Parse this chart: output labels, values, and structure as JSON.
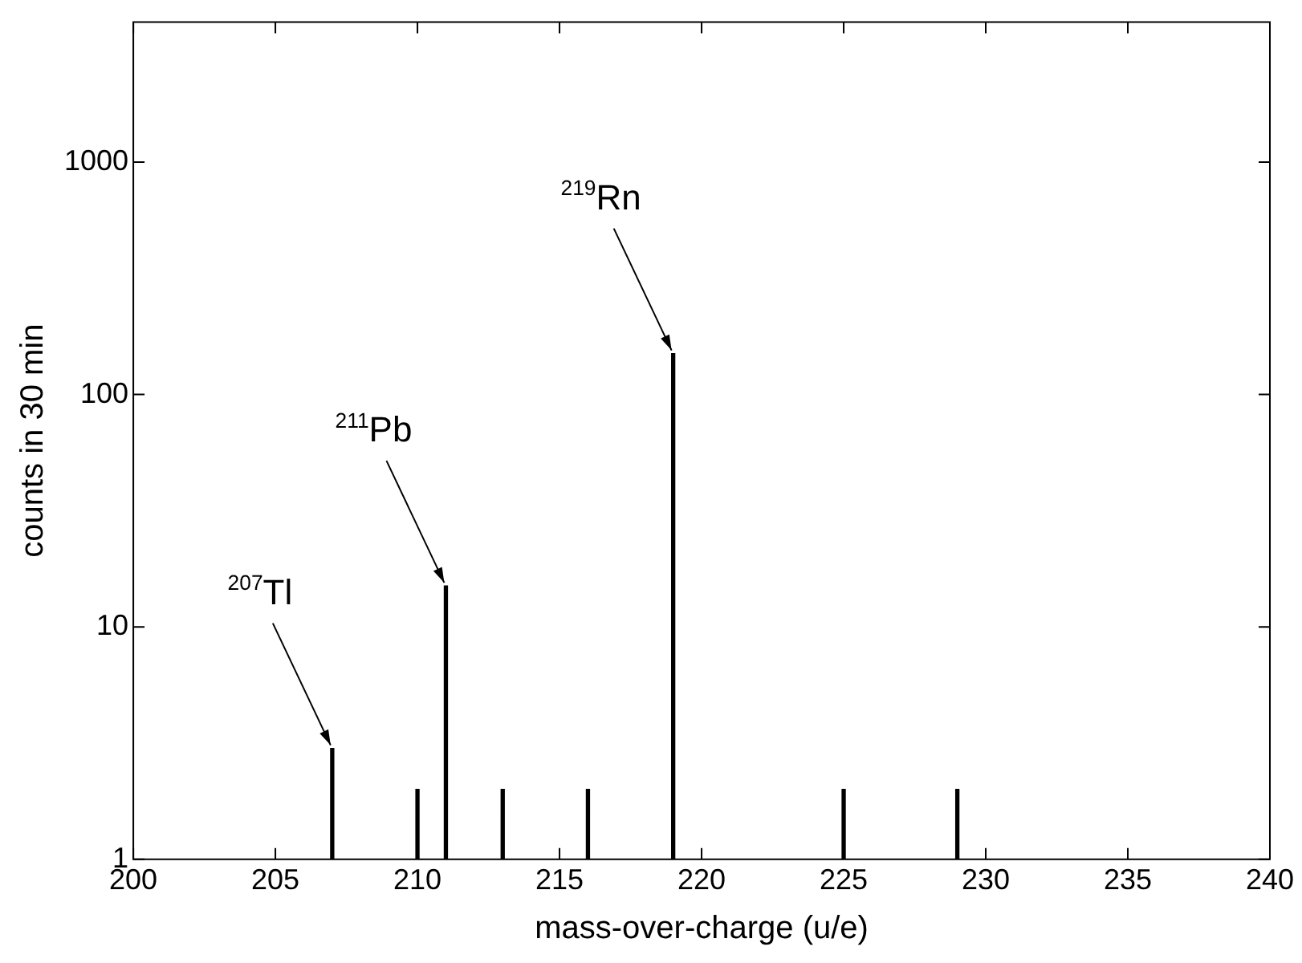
{
  "chart_data": {
    "type": "bar",
    "xlabel": "mass-over-charge (u/e)",
    "ylabel": "counts in 30 min",
    "x": [
      207,
      210,
      211,
      213,
      216,
      219,
      225,
      229
    ],
    "values": [
      3,
      2,
      15,
      2,
      2,
      150,
      2,
      2
    ],
    "color": "#000000",
    "xlim": [
      200,
      240
    ],
    "xticks": [
      200,
      205,
      210,
      215,
      220,
      225,
      230,
      235,
      240
    ],
    "ylim": [
      1,
      4000
    ],
    "yticks": [
      1,
      10,
      100,
      1000
    ],
    "log": "y",
    "grid": false,
    "legend": false,
    "annotations": [
      {
        "text": "$^{207}$Tl",
        "x": 207,
        "y": 3
      },
      {
        "text": "$^{211}$Pb",
        "x": 211,
        "y": 15
      },
      {
        "text": "$^{219}$Rn",
        "x": 219,
        "y": 150
      }
    ]
  }
}
